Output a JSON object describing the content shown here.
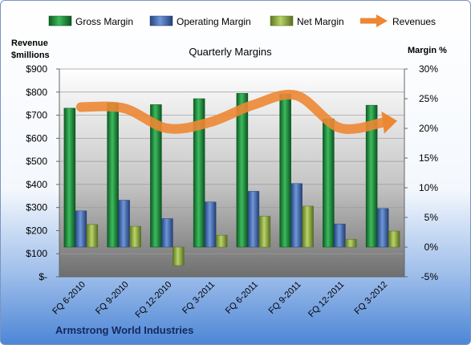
{
  "chart_data": {
    "type": "bar",
    "title": "Quarterly Margins",
    "ylabel_left_line1": "Revenue",
    "ylabel_left_line2": "$millions",
    "ylabel_right": "Margin %",
    "footer": "Armstrong World Industries",
    "categories": [
      "FQ 6-2010",
      "FQ 9-2010",
      "FQ 12-2010",
      "FQ 3-2011",
      "FQ 6-2011",
      "FQ 9-2011",
      "FQ 12-2011",
      "FQ 3-2012"
    ],
    "left_axis": {
      "ylim": [
        0,
        900
      ],
      "ticks": [
        "$-",
        "$100",
        "$200",
        "$300",
        "$400",
        "$500",
        "$600",
        "$700",
        "$800",
        "$900"
      ]
    },
    "right_axis": {
      "ylim": [
        -5,
        30
      ],
      "ticks": [
        "-5%",
        "0%",
        "5%",
        "10%",
        "15%",
        "20%",
        "25%",
        "30%"
      ]
    },
    "legend_position": "top",
    "series": [
      {
        "name": "Gross Margin",
        "axis": "right",
        "kind": "bar",
        "color": "#1e8a3c",
        "values": [
          23.4,
          24.3,
          24.0,
          25.0,
          25.9,
          25.8,
          21.6,
          23.9
        ]
      },
      {
        "name": "Operating Margin",
        "axis": "right",
        "kind": "bar",
        "color": "#3d66b0",
        "values": [
          6.1,
          7.9,
          4.8,
          7.6,
          9.4,
          10.7,
          3.9,
          6.5
        ]
      },
      {
        "name": "Net Margin",
        "axis": "right",
        "kind": "bar",
        "color": "#8fae3d",
        "values": [
          3.8,
          3.5,
          -3.1,
          2.0,
          5.2,
          6.9,
          1.3,
          2.7
        ]
      },
      {
        "name": "Revenues",
        "axis": "left",
        "kind": "line",
        "color": "#ec8734",
        "values": [
          735,
          730,
          643,
          670,
          745,
          785,
          645,
          668
        ]
      }
    ]
  }
}
